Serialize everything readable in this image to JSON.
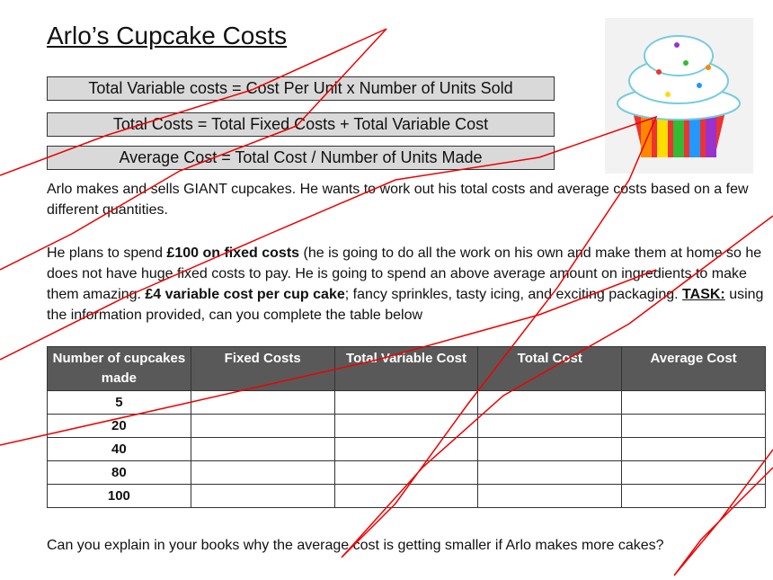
{
  "title": "Arlo’s Cupcake Costs",
  "formulas": [
    "Total Variable costs = Cost Per Unit  x Number of Units Sold",
    "Total Costs = Total Fixed Costs + Total Variable Cost",
    "Average Cost = Total Cost / Number of Units Made"
  ],
  "intro": "Arlo makes and sells GIANT cupcakes. He wants to work out his total costs and average costs based on a few different quantities.",
  "plan": [
    "He plans to spend ",
    "£100 on fixed costs",
    " (he is going to do all the work on his own and make them at home so he does not have huge fixed costs to pay. He is going to spend an above average amount on ingredients to make them amazing. ",
    "£4 variable cost per cup cake",
    "; fancy sprinkles, tasty icing, and exciting packaging. ",
    "TASK:",
    " using the information provided, can you complete the table below"
  ],
  "table": {
    "headers": [
      "Number of cupcakes made",
      "Fixed Costs",
      "Total Variable Cost",
      "Total Cost",
      "Average Cost"
    ],
    "quantities": [
      5,
      20,
      40,
      80,
      100
    ]
  },
  "question": "Can you explain in your books why the average cost is getting smaller if Arlo makes more cakes?"
}
